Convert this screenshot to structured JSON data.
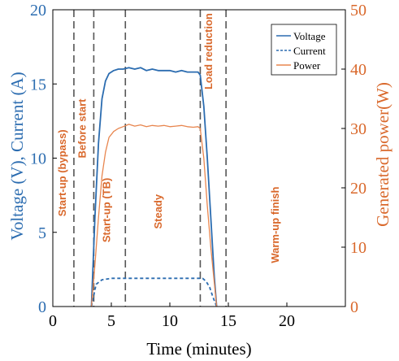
{
  "chart_data": {
    "type": "line",
    "xlabel": "Time (minutes)",
    "ylabel_left": "Voltage (V), Current (A)",
    "ylabel_right": "Generated power(W)",
    "xlim": [
      0,
      25
    ],
    "ylim_left": [
      0,
      20
    ],
    "ylim_right": [
      0,
      50
    ],
    "x_ticks": [
      0,
      5,
      10,
      15,
      20
    ],
    "y_ticks_left": [
      0,
      5,
      10,
      15,
      20
    ],
    "y_ticks_right": [
      0,
      10,
      20,
      30,
      40,
      50
    ],
    "grid": false,
    "legend_position": "top-right",
    "colors": {
      "left_axis": "#2b6cb0",
      "right_axis": "#d9682b",
      "voltage": "#2b6cb0",
      "current": "#2b6cb0",
      "power": "#e8864f",
      "phase_line": "#555555"
    },
    "phase_lines": [
      1.8,
      3.5,
      6.2,
      12.6,
      14.8
    ],
    "phase_labels": [
      {
        "text": "Start-up (bypass)",
        "x": 1.1,
        "y": 9
      },
      {
        "text": "Before start",
        "x": 2.8,
        "y": 12
      },
      {
        "text": "Start-up (TB)",
        "x": 4.9,
        "y": 6.5
      },
      {
        "text": "Steady",
        "x": 9.3,
        "y": 6.4
      },
      {
        "text": "Load reduction",
        "x": 13.6,
        "y": 17.2
      },
      {
        "text": "Warm-up finish",
        "x": 19.3,
        "y": 5.5
      }
    ],
    "series": [
      {
        "name": "Voltage",
        "axis": "left",
        "style": "solid",
        "x": [
          3.3,
          3.6,
          3.9,
          4.2,
          4.5,
          4.8,
          5.2,
          5.6,
          6.0,
          6.5,
          7.0,
          7.5,
          8.0,
          8.5,
          9.0,
          9.5,
          10.0,
          10.5,
          11.0,
          11.5,
          12.0,
          12.4,
          12.6,
          12.9,
          13.2,
          13.5,
          13.8,
          14.0
        ],
        "values": [
          0,
          6,
          11,
          14,
          15.2,
          15.7,
          15.9,
          16.0,
          16.0,
          16.1,
          16.0,
          16.1,
          15.9,
          16.0,
          15.9,
          15.9,
          15.9,
          15.8,
          15.9,
          15.8,
          15.8,
          15.8,
          15.6,
          13.5,
          10,
          6,
          2,
          0
        ]
      },
      {
        "name": "Current",
        "axis": "left",
        "style": "dashed",
        "x": [
          3.3,
          3.7,
          4.2,
          5.0,
          6.0,
          8.0,
          10.0,
          12.0,
          12.8,
          13.1,
          13.4,
          13.7,
          14.0
        ],
        "values": [
          0,
          1.5,
          1.8,
          1.9,
          1.9,
          1.9,
          1.9,
          1.9,
          1.9,
          1.7,
          1.3,
          0.6,
          0
        ]
      },
      {
        "name": "Power",
        "axis": "right",
        "style": "solid",
        "x": [
          3.3,
          3.6,
          3.9,
          4.2,
          4.5,
          4.8,
          5.2,
          5.6,
          6.0,
          6.5,
          7.0,
          7.5,
          8.0,
          8.5,
          9.0,
          9.5,
          10.0,
          10.5,
          11.0,
          11.5,
          12.0,
          12.4,
          12.6,
          12.9,
          13.2,
          13.5,
          13.8,
          14.0
        ],
        "values": [
          0,
          7,
          15,
          22,
          26,
          28.5,
          29.5,
          30,
          30.3,
          30.7,
          30.4,
          30.6,
          30.3,
          30.5,
          30.4,
          30.5,
          30.3,
          30.4,
          30.5,
          30.3,
          30.2,
          30.3,
          30.0,
          25,
          17,
          10,
          4,
          0
        ]
      }
    ]
  }
}
